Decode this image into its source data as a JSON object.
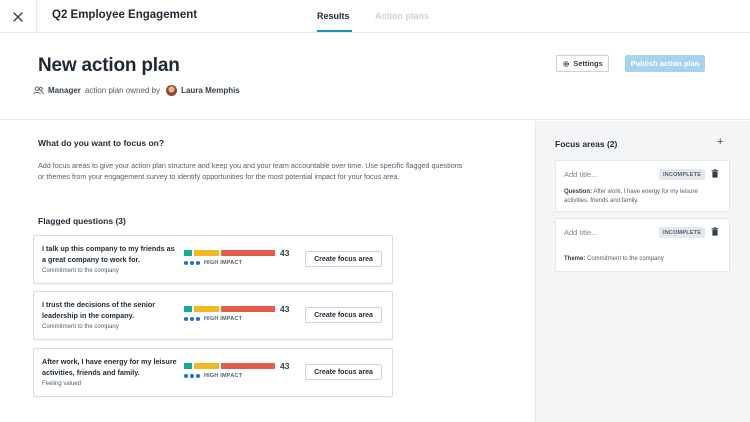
{
  "header": {
    "title": "Q2 Employee Engagement",
    "tabs": [
      {
        "label": "Results",
        "active": true
      },
      {
        "label": "Action plans",
        "active": false
      }
    ]
  },
  "plan": {
    "title": "New action plan",
    "owner_prefix": "Manager",
    "owner_text": "action plan owned by",
    "owner_name": "Laura Memphis",
    "settings_label": "Settings",
    "publish_label": "Publish action plan"
  },
  "main": {
    "heading": "What do you want to focus on?",
    "intro": "Add focus areas to give your action plan structure and keep you and your team accountable over time. Use specific flagged questions or themes from your engagement survey to identify opportunities for the most potential impact for your focus area.",
    "flagged_heading": "Flagged questions (3)",
    "questions": [
      {
        "text": "I talk up this company to my friends as a great company to work for.",
        "theme": "Commitment to the company",
        "score": "43",
        "impact": "HIGH IMPACT",
        "button": "Create focus area"
      },
      {
        "text": "I trust the decisions of the senior leadership in the company.",
        "theme": "Commitment to the company",
        "score": "43",
        "impact": "HIGH IMPACT",
        "button": "Create focus area"
      },
      {
        "text": "After work, I have energy for my leisure activities, friends and family.",
        "theme": "Feeling valued",
        "score": "43",
        "impact": "HIGH IMPACT",
        "button": "Create focus area"
      }
    ]
  },
  "side": {
    "title": "Focus areas (2)",
    "add_symbol": "+",
    "cards": [
      {
        "placeholder": "Add title...",
        "status": "INCOMPLETE",
        "detail_label": "Question:",
        "detail_text": "After work, I have energy for my leisure activities, friends and family."
      },
      {
        "placeholder": "Add title...",
        "status": "INCOMPLETE",
        "detail_label": "Theme:",
        "detail_text": "Commitment to the company"
      }
    ]
  },
  "colors": {
    "accent": "#1a8fc7",
    "publish_disabled": "#a8d3ef",
    "impact_green": "#18a999",
    "impact_yellow": "#f2b824",
    "impact_red": "#e25d4b",
    "impact_dots": "#1a6ed8"
  },
  "icons": [
    "close-icon",
    "users-icon",
    "gear-icon",
    "plus-icon",
    "trash-icon"
  ]
}
